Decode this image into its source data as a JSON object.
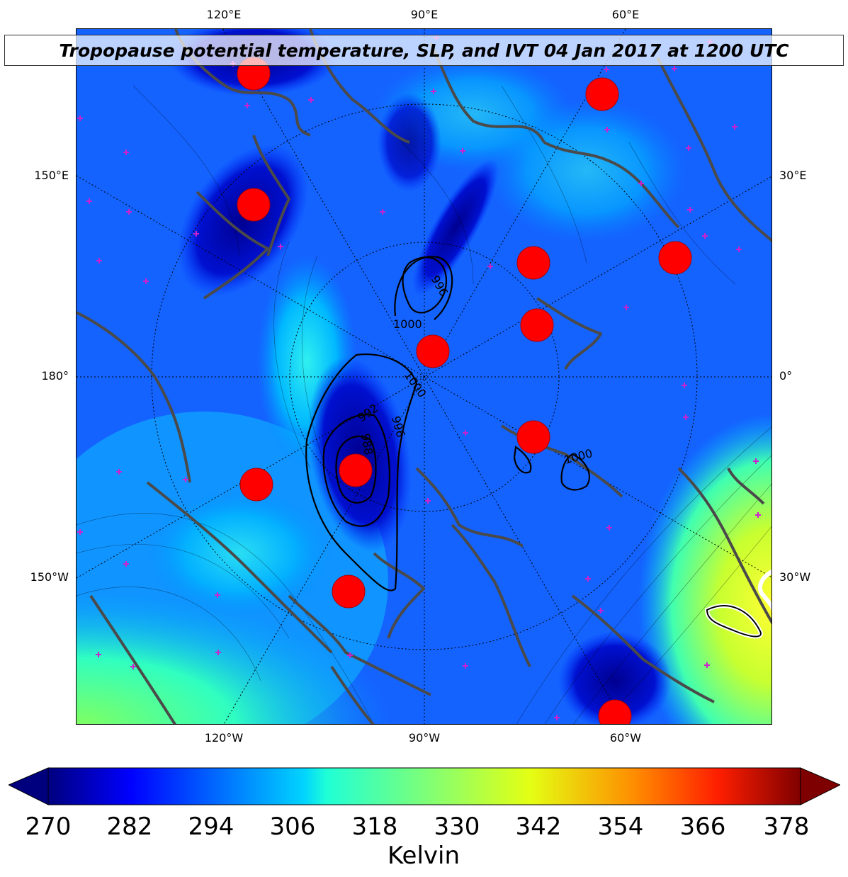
{
  "title": "Tropopause potential temperature, SLP, and IVT 04 Jan 2017 at 1200 UTC",
  "map": {
    "projection": "north-polar stereographic",
    "variables": [
      "tropopause potential temperature",
      "sea level pressure",
      "integrated vapor transport"
    ],
    "top_lon_labels": [
      "120°E",
      "90°E",
      "60°E"
    ],
    "bottom_lon_labels": [
      "120°W",
      "90°W",
      "60°W"
    ],
    "left_labels": [
      "150°E",
      "180°",
      "150°W"
    ],
    "right_labels": [
      "30°E",
      "0°",
      "30°W"
    ],
    "slp_contour_labels": [
      "996",
      "1000",
      "1000",
      "992",
      "996",
      "988",
      "1000"
    ],
    "colors": {
      "background_blue": "#1463ff",
      "coastline": "#4a4a4a",
      "slp_contour": "#000000",
      "dot": "#ff0000",
      "station_marker": "#cc22cc",
      "ivt_contour": "#ffffff"
    }
  },
  "colorbar": {
    "colormap": "jet",
    "extend": "both",
    "ticks": [
      "270",
      "282",
      "294",
      "306",
      "318",
      "330",
      "342",
      "354",
      "366",
      "378"
    ],
    "label": "Kelvin"
  }
}
